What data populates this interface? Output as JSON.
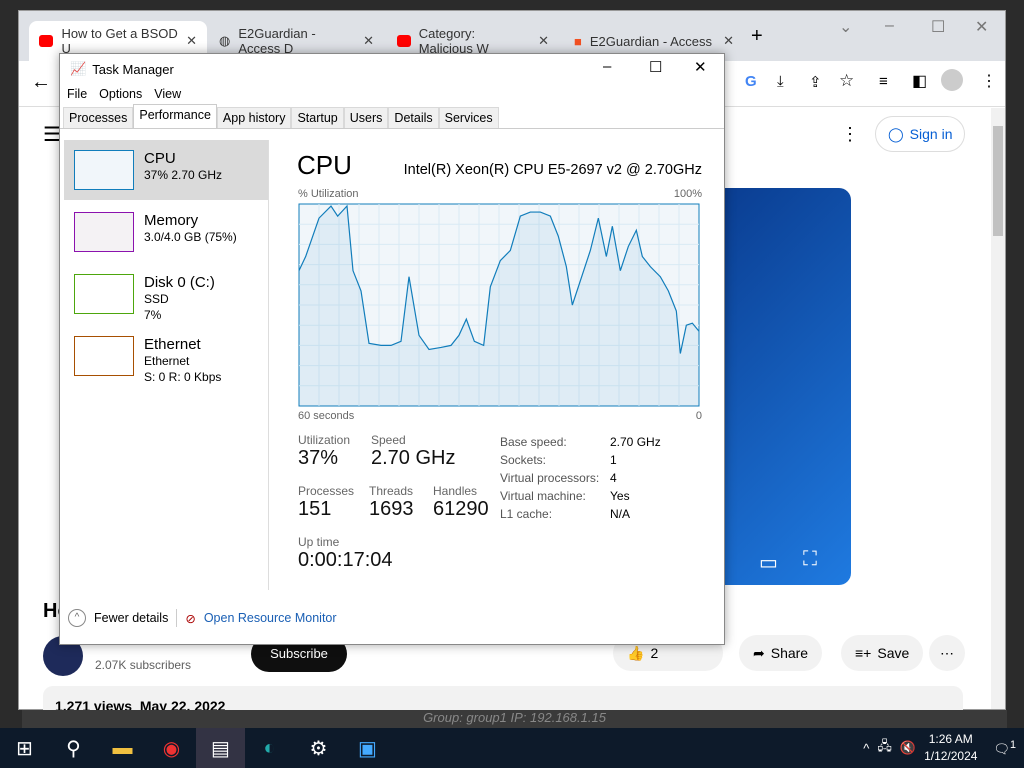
{
  "browser": {
    "tabs": [
      {
        "title": "How to Get a BSOD U",
        "icon": "youtube-icon"
      },
      {
        "title": "E2Guardian - Access D",
        "icon": "globe-icon"
      },
      {
        "title": "Category: Malicious W",
        "icon": "youtube-icon"
      },
      {
        "title": "E2Guardian - Access",
        "icon": "microsoft-icon"
      }
    ],
    "sign_in": "Sign in",
    "video_title_partial": "Ho",
    "subscribers": "2.07K subscribers",
    "subscribe": "Subscribe",
    "like_count": "2",
    "share": "Share",
    "save": "Save",
    "views": "1,271 views",
    "date": "May 22, 2022"
  },
  "banner": "Group: group1   IP: 192.168.1.15",
  "task_manager": {
    "title": "Task Manager",
    "menu": [
      "File",
      "Options",
      "View"
    ],
    "tabs": [
      "Processes",
      "Performance",
      "App history",
      "Startup",
      "Users",
      "Details",
      "Services"
    ],
    "active_tab": "Performance",
    "sidebar": [
      {
        "name": "CPU",
        "line1": "37% 2.70 GHz",
        "line2": "",
        "color": "#117dbb"
      },
      {
        "name": "Memory",
        "line1": "3.0/4.0 GB (75%)",
        "line2": "",
        "color": "#8b12ae"
      },
      {
        "name": "Disk 0 (C:)",
        "line1": "SSD",
        "line2": "7%",
        "color": "#4da60c"
      },
      {
        "name": "Ethernet",
        "line1": "Ethernet",
        "line2": "S: 0 R: 0 Kbps",
        "color": "#a74f01"
      }
    ],
    "cpu": {
      "heading": "CPU",
      "model": "Intel(R) Xeon(R) CPU E5-2697 v2 @ 2.70GHz",
      "y_label": "% Utilization",
      "y_max": "100%",
      "x_left": "60 seconds",
      "x_right": "0",
      "utilization_label": "Utilization",
      "utilization": "37%",
      "speed_label": "Speed",
      "speed": "2.70 GHz",
      "processes_label": "Processes",
      "processes": "151",
      "threads_label": "Threads",
      "threads": "1693",
      "handles_label": "Handles",
      "handles": "61290",
      "uptime_label": "Up time",
      "uptime": "0:00:17:04",
      "details": [
        [
          "Base speed:",
          "2.70 GHz"
        ],
        [
          "Sockets:",
          "1"
        ],
        [
          "Virtual processors:",
          "4"
        ],
        [
          "Virtual machine:",
          "Yes"
        ],
        [
          "L1 cache:",
          "N/A"
        ]
      ]
    },
    "fewer_details": "Fewer details",
    "open_resource_monitor": "Open Resource Monitor"
  },
  "chart_data": {
    "type": "line",
    "x_unit": "seconds ago",
    "xlim": [
      60,
      0
    ],
    "ylim": [
      0,
      100
    ],
    "grid": true,
    "points": [
      [
        60,
        67
      ],
      [
        59,
        74
      ],
      [
        57,
        93
      ],
      [
        55.2,
        99
      ],
      [
        54.2,
        94
      ],
      [
        52.8,
        99
      ],
      [
        51.9,
        67
      ],
      [
        50.7,
        57
      ],
      [
        49.5,
        31
      ],
      [
        47.7,
        30
      ],
      [
        46.2,
        30
      ],
      [
        44.7,
        32
      ],
      [
        43.5,
        64
      ],
      [
        42,
        35
      ],
      [
        40.5,
        28
      ],
      [
        38.7,
        29
      ],
      [
        37.2,
        30
      ],
      [
        36,
        35
      ],
      [
        34.9,
        43
      ],
      [
        33.7,
        32
      ],
      [
        32.3,
        30
      ],
      [
        31.3,
        59
      ],
      [
        29.8,
        72
      ],
      [
        28.3,
        77
      ],
      [
        26.8,
        94
      ],
      [
        25.3,
        96
      ],
      [
        23.8,
        96
      ],
      [
        22.3,
        94
      ],
      [
        21.1,
        84
      ],
      [
        19.9,
        69
      ],
      [
        19,
        50
      ],
      [
        17.8,
        62
      ],
      [
        16.3,
        77
      ],
      [
        15.1,
        93
      ],
      [
        13.9,
        74
      ],
      [
        13,
        89
      ],
      [
        11.8,
        67
      ],
      [
        10.6,
        79
      ],
      [
        9.4,
        87
      ],
      [
        8.5,
        74
      ],
      [
        7.3,
        69
      ],
      [
        5.8,
        64
      ],
      [
        4.6,
        57
      ],
      [
        3.4,
        47
      ],
      [
        2.8,
        26
      ],
      [
        1.9,
        40
      ],
      [
        1,
        41
      ],
      [
        0,
        37
      ]
    ]
  },
  "taskbar": {
    "time": "1:26 AM",
    "date": "1/12/2024",
    "notifications": "1"
  }
}
